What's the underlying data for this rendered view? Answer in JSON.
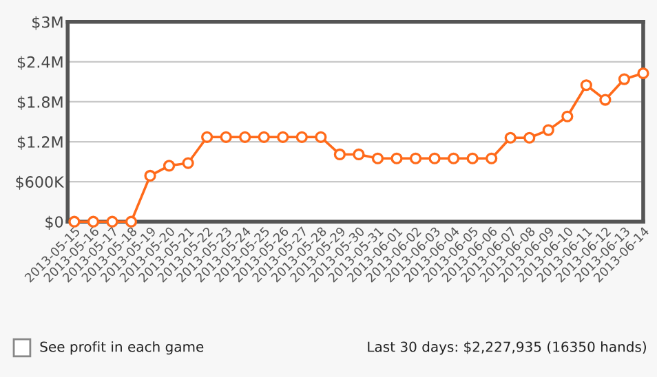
{
  "chart_data": {
    "type": "line",
    "categories": [
      "2013-05-15",
      "2013-05-16",
      "2013-05-17",
      "2013-05-18",
      "2013-05-19",
      "2013-05-20",
      "2013-05-21",
      "2013-05-22",
      "2013-05-23",
      "2013-05-24",
      "2013-05-25",
      "2013-05-26",
      "2013-05-27",
      "2013-05-28",
      "2013-05-29",
      "2013-05-30",
      "2013-05-31",
      "2013-06-01",
      "2013-06-02",
      "2013-06-03",
      "2013-06-04",
      "2013-06-05",
      "2013-06-06",
      "2013-06-07",
      "2013-06-08",
      "2013-06-09",
      "2013-06-10",
      "2013-06-11",
      "2013-06-12",
      "2013-06-13",
      "2013-06-14"
    ],
    "series": [
      {
        "color": "#ff6a1a",
        "values": [
          0,
          0,
          0,
          0,
          690000,
          840000,
          880000,
          1270000,
          1270000,
          1270000,
          1270000,
          1270000,
          1270000,
          1270000,
          1010000,
          1010000,
          950000,
          950000,
          950000,
          950000,
          950000,
          950000,
          950000,
          1260000,
          1260000,
          1375000,
          1580000,
          2050000,
          1830000,
          2140000,
          2227935
        ]
      }
    ],
    "ylim": [
      0,
      3000000
    ],
    "yticks": [
      {
        "value": 0,
        "label": "$0"
      },
      {
        "value": 600000,
        "label": "$600K"
      },
      {
        "value": 1200000,
        "label": "$1.2M"
      },
      {
        "value": 1800000,
        "label": "$1.8M"
      },
      {
        "value": 2400000,
        "label": "$2.4M"
      },
      {
        "value": 3000000,
        "label": "$3M"
      }
    ],
    "grid": "y",
    "legend": false,
    "marker": "circle",
    "line_style": "solid",
    "annotations": [
      "See profit in each game",
      "Last 30 days: $2,227,935 (16350 hands)"
    ]
  }
}
